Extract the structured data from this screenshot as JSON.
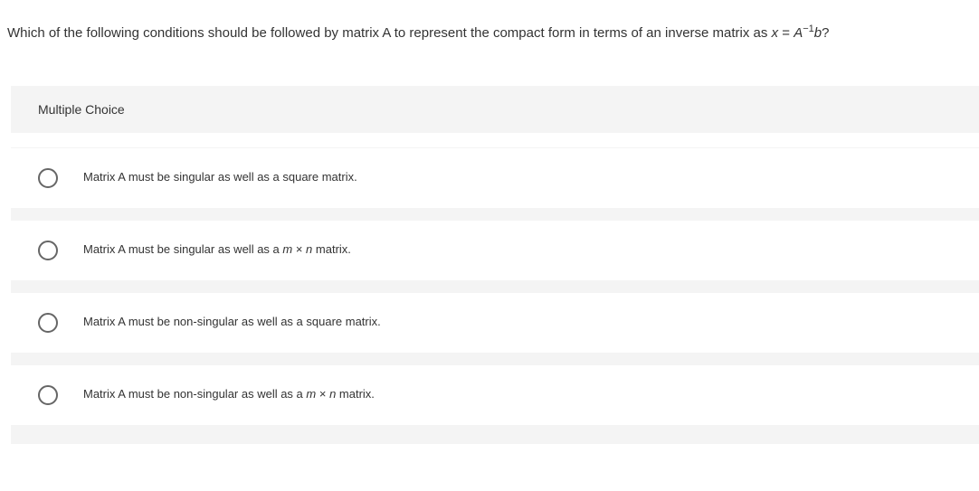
{
  "question": {
    "prefix": "Which of the following conditions should be followed by matrix A to represent the compact form in terms of an inverse matrix as ",
    "eq_x": "x",
    "eq_equals": " = ",
    "eq_A": "A",
    "eq_sup": "−1",
    "eq_b": "b",
    "suffix": "?"
  },
  "section_label": "Multiple Choice",
  "options": [
    {
      "text": "Matrix A must be singular as well as a square matrix.",
      "has_mn": false
    },
    {
      "prefix": "Matrix A must be singular as well as a ",
      "m": "m",
      "times": " × ",
      "n": "n",
      "suffix": " matrix.",
      "has_mn": true
    },
    {
      "text": "Matrix A must be non-singular as well as a square matrix.",
      "has_mn": false
    },
    {
      "prefix": "Matrix A must be non-singular as well as a ",
      "m": "m",
      "times": " × ",
      "n": "n",
      "suffix": " matrix.",
      "has_mn": true
    }
  ],
  "colors": {
    "page_bg": "#ffffff",
    "section_bg": "#f4f4f4",
    "text": "#333333",
    "radio_border": "#666666"
  }
}
